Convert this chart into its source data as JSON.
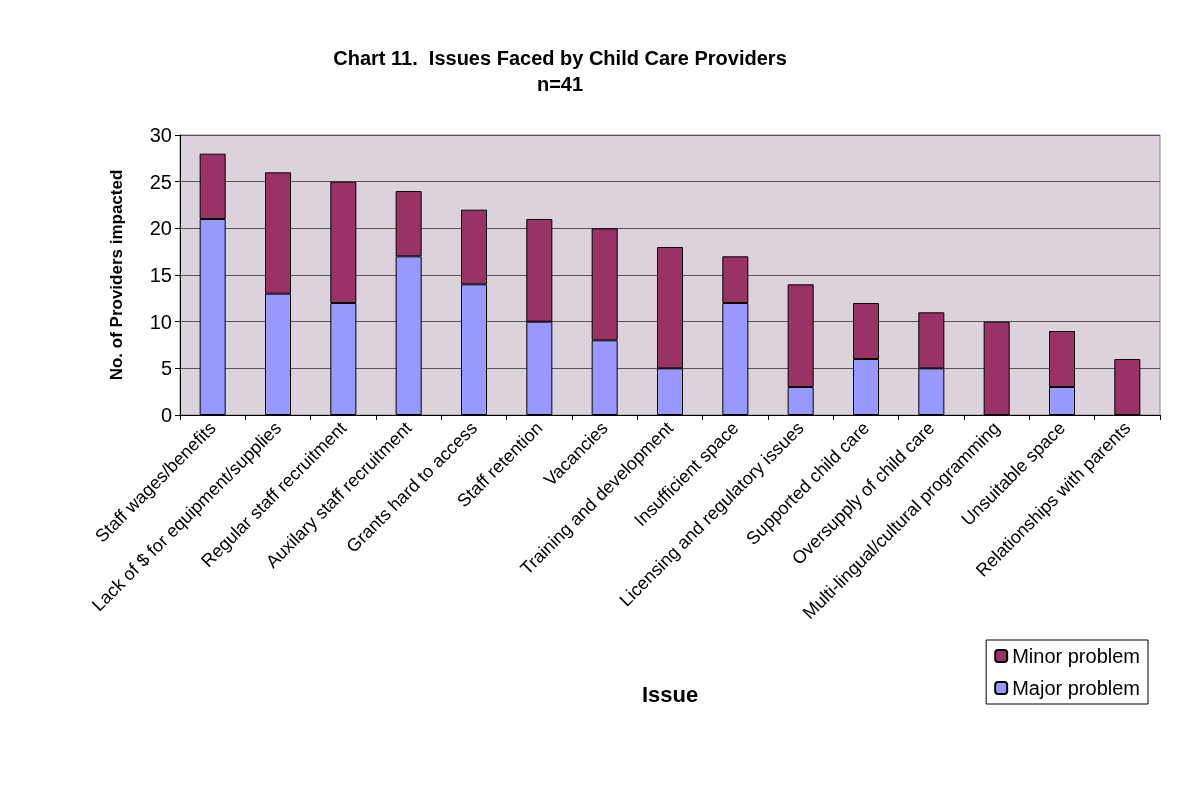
{
  "chart_data": {
    "type": "bar",
    "title": "Chart 11.  Issues Faced by Child Care Providers",
    "subtitle": "n=41",
    "xlabel": "Issue",
    "ylabel": "No. of Providers impacted",
    "categories": [
      "Staff wages/benefits",
      "Lack of $ for equipment/supplies",
      "Regular staff recruitment",
      "Auxilary staff recruitment",
      "Grants hard to access",
      "Staff retention",
      "Vacancies",
      "Training and development",
      "Insufficient space",
      "Licensing and regulatory issues",
      "Supported child care",
      "Oversupply of child care",
      "Multi-lingual/cultural programming",
      "Unsuitable space",
      "Relationships with parents"
    ],
    "series": [
      {
        "name": "Major problem",
        "color": "#9999ff",
        "values": [
          21,
          13,
          12,
          17,
          14,
          10,
          8,
          5,
          12,
          3,
          6,
          5,
          0,
          3,
          0
        ]
      },
      {
        "name": "Minor problem",
        "color": "#993366",
        "values": [
          7,
          13,
          13,
          7,
          8,
          11,
          12,
          13,
          5,
          11,
          6,
          6,
          10,
          6,
          6
        ]
      }
    ],
    "stacked": true,
    "ylim": [
      0,
      30
    ],
    "yticks": [
      0,
      5,
      10,
      15,
      20,
      25,
      30
    ],
    "grid": "y",
    "legend": "bottom right"
  }
}
